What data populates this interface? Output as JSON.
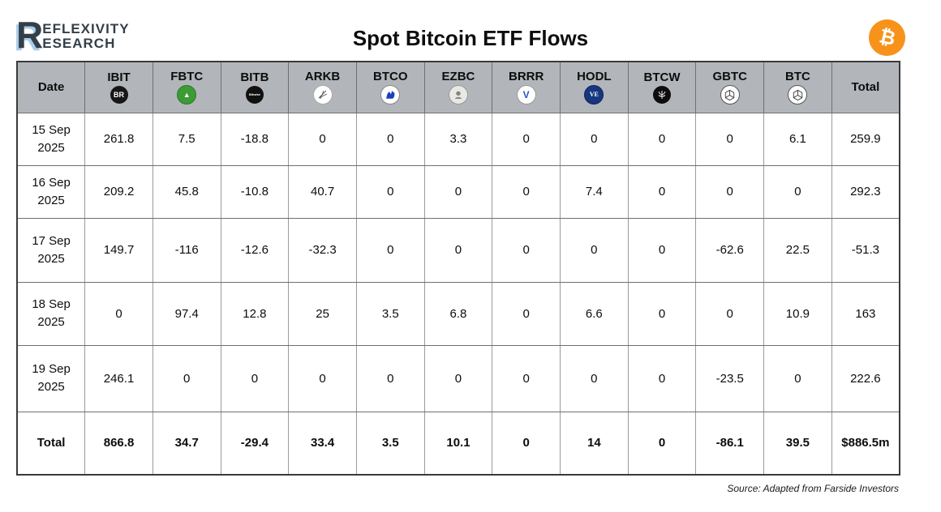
{
  "page": {
    "logo": {
      "letter": "R",
      "line1": "EFLEXIVITY",
      "line2": "ESEARCH"
    },
    "title": "Spot Bitcoin ETF Flows",
    "bitcoin_symbol": "₿",
    "source": "Source: Adapted from Farside Investors"
  },
  "colors": {
    "header_bg": "#b2b6ba",
    "bitcoin_orange": "#f7931a",
    "logo_dark": "#333f48",
    "logo_accent": "#a9cdea"
  },
  "table": {
    "columns": [
      {
        "key": "date",
        "label": "Date",
        "icon": null
      },
      {
        "key": "IBIT",
        "label": "IBIT",
        "icon": "blackrock-icon",
        "icon_text": "BR"
      },
      {
        "key": "FBTC",
        "label": "FBTC",
        "icon": "fidelity-icon"
      },
      {
        "key": "BITB",
        "label": "BITB",
        "icon": "bitwise-icon",
        "icon_text": "Bitwise"
      },
      {
        "key": "ARKB",
        "label": "ARKB",
        "icon": "ark-icon"
      },
      {
        "key": "BTCO",
        "label": "BTCO",
        "icon": "invesco-icon"
      },
      {
        "key": "EZBC",
        "label": "EZBC",
        "icon": "franklin-icon"
      },
      {
        "key": "BRRR",
        "label": "BRRR",
        "icon": "valkyrie-icon",
        "icon_text": "V"
      },
      {
        "key": "HODL",
        "label": "HODL",
        "icon": "vaneck-icon",
        "icon_text": "VE"
      },
      {
        "key": "BTCW",
        "label": "BTCW",
        "icon": "wisdomtree-icon"
      },
      {
        "key": "GBTC",
        "label": "GBTC",
        "icon": "grayscale-icon"
      },
      {
        "key": "BTC",
        "label": "BTC",
        "icon": "grayscale-icon"
      },
      {
        "key": "total",
        "label": "Total",
        "icon": null
      }
    ],
    "total_label": "Total"
  },
  "chart_data": {
    "type": "table",
    "title": "Spot Bitcoin ETF Flows",
    "columns": [
      "Date",
      "IBIT",
      "FBTC",
      "BITB",
      "ARKB",
      "BTCO",
      "EZBC",
      "BRRR",
      "HODL",
      "BTCW",
      "GBTC",
      "BTC",
      "Total"
    ],
    "rows": [
      {
        "date": "15 Sep 2025",
        "values": [
          261.8,
          7.5,
          -18.8,
          0,
          0,
          3.3,
          0,
          0,
          0,
          0,
          6.1,
          259.9
        ]
      },
      {
        "date": "16 Sep 2025",
        "values": [
          209.2,
          45.8,
          -10.8,
          40.7,
          0,
          0,
          0,
          7.4,
          0,
          0,
          0,
          292.3
        ]
      },
      {
        "date": "17 Sep 2025",
        "values": [
          149.7,
          -116,
          -12.6,
          -32.3,
          0,
          0,
          0,
          0,
          0,
          -62.6,
          22.5,
          -51.3
        ]
      },
      {
        "date": "18 Sep 2025",
        "values": [
          0,
          97.4,
          12.8,
          25,
          3.5,
          6.8,
          0,
          6.6,
          0,
          0,
          10.9,
          163
        ]
      },
      {
        "date": "19 Sep 2025",
        "values": [
          246.1,
          0,
          0,
          0,
          0,
          0,
          0,
          0,
          0,
          -23.5,
          0,
          222.6
        ]
      }
    ],
    "totals": [
      866.8,
      34.7,
      -29.4,
      33.4,
      3.5,
      10.1,
      0,
      14,
      0,
      -86.1,
      39.5,
      "$886.5m"
    ]
  }
}
